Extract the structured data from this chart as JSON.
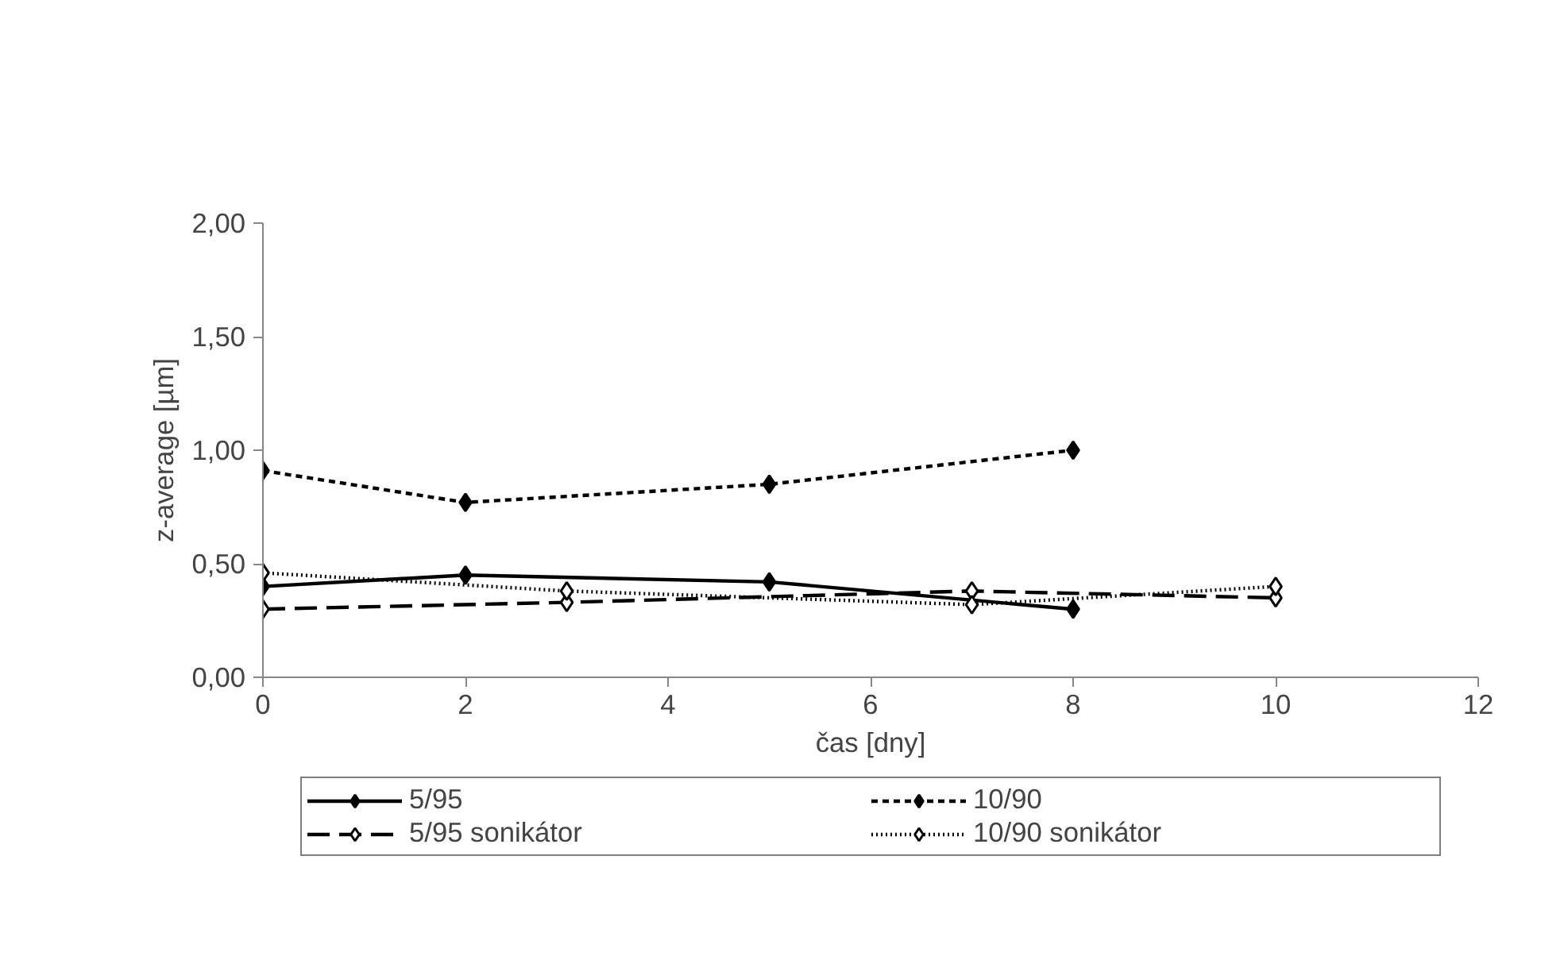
{
  "chart_data": {
    "type": "line",
    "xlabel": "čas [dny]",
    "ylabel": "z-average [µm]",
    "xlim": [
      0,
      12
    ],
    "xticks": [
      0,
      2,
      4,
      6,
      8,
      10,
      12
    ],
    "ylim": [
      0,
      2
    ],
    "yticks": [
      {
        "value": 0,
        "label": "0,00"
      },
      {
        "value": 0.5,
        "label": "0,50"
      },
      {
        "value": 1,
        "label": "1,00"
      },
      {
        "value": 1.5,
        "label": "1,50"
      },
      {
        "value": 2,
        "label": "2,00"
      }
    ],
    "grid": false,
    "legend": "bottom",
    "marker": "diamond",
    "series": [
      {
        "name": "5/95",
        "color": "#000000",
        "line_style": "solid",
        "x": [
          0,
          2,
          5,
          8
        ],
        "values": [
          0.4,
          0.45,
          0.42,
          0.3
        ]
      },
      {
        "name": "10/90",
        "color": "#000000",
        "line_style": "dashed",
        "x": [
          0,
          2,
          5,
          8
        ],
        "values": [
          0.91,
          0.77,
          0.85,
          1.0
        ]
      },
      {
        "name": "5/95 sonikátor",
        "color": "#000000",
        "line_style": "longdash",
        "marker": "diamond_open",
        "x": [
          0,
          3,
          7,
          10
        ],
        "values": [
          0.3,
          0.33,
          0.38,
          0.35
        ]
      },
      {
        "name": "10/90 sonikátor",
        "color": "#000000",
        "line_style": "dotted",
        "marker": "diamond_open",
        "x": [
          0,
          3,
          7,
          10
        ],
        "values": [
          0.46,
          0.38,
          0.32,
          0.4
        ]
      }
    ]
  }
}
